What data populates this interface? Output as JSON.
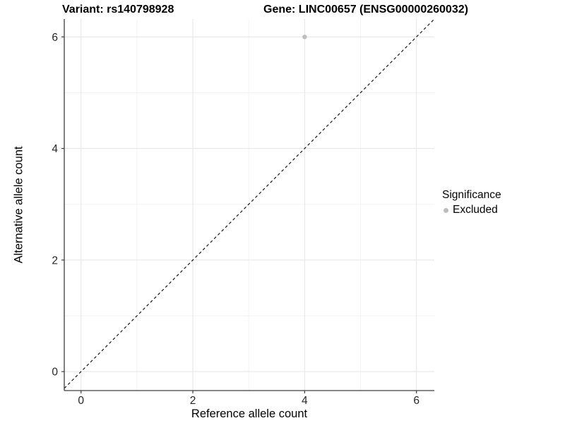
{
  "header": {
    "title_left": "Variant: rs140798928",
    "title_right": "Gene: LINC00657 (ENSG00000260032)"
  },
  "chart_data": {
    "type": "scatter",
    "title": "Variant: rs140798928   Gene: LINC00657 (ENSG00000260032)",
    "xlabel": "Reference allele count",
    "ylabel": "Alternative allele count",
    "xlim": [
      -0.3,
      6.32
    ],
    "ylim": [
      -0.34,
      6.32
    ],
    "x_ticks": [
      0,
      2,
      4,
      6
    ],
    "y_ticks": [
      0,
      2,
      4,
      6
    ],
    "major_gridlines": [
      0,
      2,
      4,
      6
    ],
    "minor_gridlines": [
      1,
      3,
      5
    ],
    "grid": true,
    "series": [
      {
        "name": "Excluded",
        "points": [
          {
            "x": 4,
            "y": 6
          }
        ],
        "color": "#bdbdbd",
        "point_radius": 3.2
      }
    ],
    "reference_line": {
      "type": "identity",
      "style": "dashed",
      "color": "#000000"
    },
    "legend": {
      "title": "Significance",
      "position": "right",
      "entries": [
        {
          "label": "Excluded",
          "color": "#bdbdbd"
        }
      ]
    }
  },
  "colors": {
    "background": "#ffffff",
    "axis_line": "#3d3d3d",
    "tick_label": "#262626",
    "major_grid": "#e7e7e7",
    "minor_grid": "#f3f3f3",
    "point": "#bdbdbd"
  }
}
